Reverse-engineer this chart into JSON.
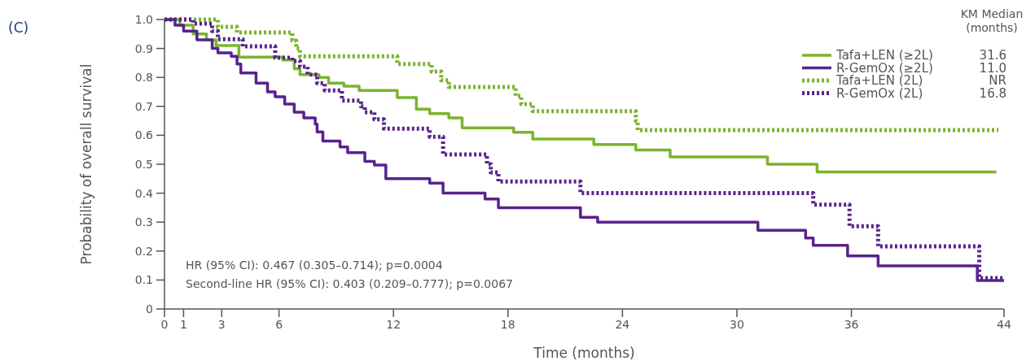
{
  "chart_data": {
    "type": "step",
    "title": "(C)",
    "xlabel": "Time (months)",
    "ylabel": "Probability of overall survival",
    "legend_title": "KM Median (months)",
    "xlim": [
      0,
      44
    ],
    "xticks": [
      0,
      1,
      3,
      6,
      12,
      18,
      24,
      30,
      36,
      44
    ],
    "ylim": [
      0,
      1
    ],
    "yticks": [
      0,
      0.1,
      0.2,
      0.3,
      0.4,
      0.5,
      0.6,
      0.7,
      0.8,
      0.9,
      {
        "value": 1,
        "label": "1.0"
      }
    ],
    "grid": false,
    "legend": "top right",
    "marker": "none",
    "series": [
      {
        "name": "Tafa+LEN (≥2L)",
        "color": "#7ab42e",
        "line_style": "solid",
        "x": [
          0,
          0.8,
          1.5,
          2.2,
          2.7,
          3.9,
          6.2,
          6.8,
          7.1,
          8.1,
          8.6,
          9.4,
          10.2,
          12.2,
          13.2,
          13.9,
          14.9,
          15.6,
          18.3,
          19.3,
          22.5,
          24.7,
          26.5,
          31.6,
          34.2,
          43.6
        ],
        "values": [
          1,
          0.98,
          0.95,
          0.93,
          0.91,
          0.87,
          0.86,
          0.83,
          0.81,
          0.8,
          0.78,
          0.77,
          0.755,
          0.73,
          0.69,
          0.675,
          0.66,
          0.626,
          0.61,
          0.587,
          0.568,
          0.549,
          0.525,
          0.5,
          0.473,
          0.473
        ]
      },
      {
        "name": "R-GemOx (≥2L)",
        "color": "#58238c",
        "line_style": "solid",
        "x": [
          0,
          0.55,
          1.0,
          1.7,
          2.5,
          2.8,
          3.5,
          3.8,
          4.0,
          4.8,
          5.4,
          5.8,
          6.3,
          6.8,
          7.3,
          7.9,
          8.0,
          8.3,
          9.2,
          9.6,
          10.5,
          11.0,
          11.6,
          13.9,
          14.6,
          16.8,
          17.5,
          21.8,
          22.7,
          31.1,
          33.6,
          34.0,
          35.8,
          37.4,
          42.6,
          44
        ],
        "values": [
          1,
          0.98,
          0.96,
          0.93,
          0.9,
          0.885,
          0.873,
          0.846,
          0.815,
          0.78,
          0.75,
          0.733,
          0.708,
          0.68,
          0.66,
          0.638,
          0.612,
          0.58,
          0.56,
          0.54,
          0.51,
          0.497,
          0.45,
          0.435,
          0.4,
          0.38,
          0.35,
          0.317,
          0.3,
          0.272,
          0.245,
          0.22,
          0.183,
          0.149,
          0.098,
          0.098
        ]
      },
      {
        "name": "Tafa+LEN (2L)",
        "color": "#7ab42e",
        "line_style": "dotted",
        "x": [
          0,
          2.8,
          3.8,
          6.7,
          6.9,
          7.1,
          12.2,
          14.0,
          14.5,
          14.9,
          18.4,
          18.7,
          19.3,
          24.7,
          24.8,
          43.7
        ],
        "values": [
          1,
          0.975,
          0.955,
          0.927,
          0.9,
          0.873,
          0.846,
          0.82,
          0.79,
          0.767,
          0.736,
          0.708,
          0.683,
          0.65,
          0.618,
          0.618
        ]
      },
      {
        "name": "R-GemOx (2L)",
        "color": "#58238c",
        "line_style": "dotted",
        "x": [
          0,
          1.5,
          2.5,
          2.8,
          4.1,
          5.8,
          6.7,
          7.1,
          7.5,
          8.0,
          8.4,
          9.3,
          10.3,
          10.5,
          11.0,
          11.5,
          13.9,
          14.6,
          16.9,
          17.1,
          17.5,
          21.8,
          34.0,
          35.9,
          37.4,
          42.7,
          44
        ],
        "values": [
          1,
          0.986,
          0.96,
          0.932,
          0.907,
          0.868,
          0.857,
          0.837,
          0.81,
          0.78,
          0.755,
          0.72,
          0.7,
          0.68,
          0.655,
          0.623,
          0.595,
          0.534,
          0.5,
          0.472,
          0.44,
          0.4,
          0.36,
          0.286,
          0.216,
          0.107,
          0.107
        ]
      }
    ],
    "annotations": [
      "HR (95% CI): 0.467 (0.305–0.714); p=0.0004",
      "Second-line HR (95% CI): 0.403 (0.209–0.777); p=0.0067",
      "31.6",
      "11.0",
      "NR",
      "16.8"
    ]
  }
}
